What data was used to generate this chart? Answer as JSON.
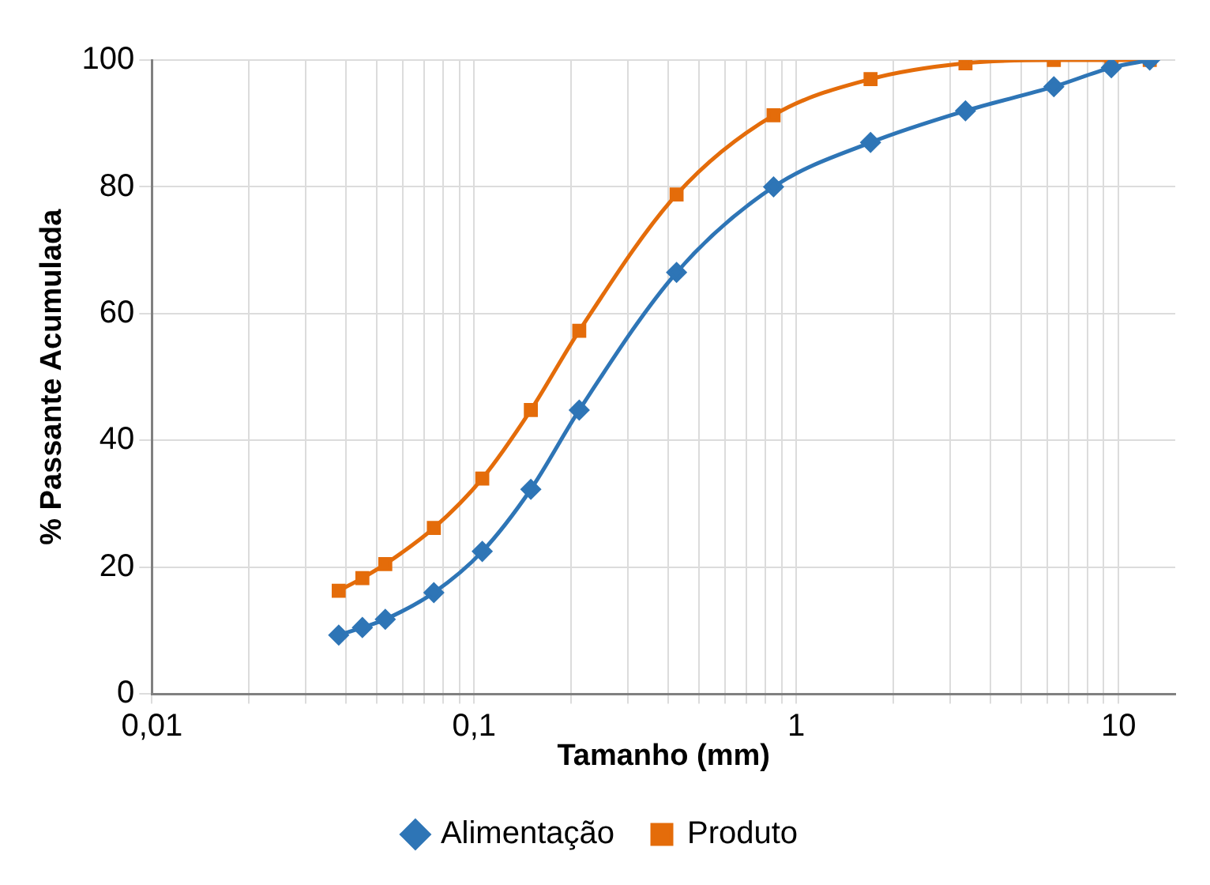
{
  "chart_data": {
    "type": "line",
    "xlabel": "Tamanho (mm)",
    "ylabel": "% Passante Acumulada",
    "log": "x",
    "grid": true,
    "legend": "bottom",
    "line_style": "solid",
    "xlim": [
      0.01,
      15
    ],
    "ylim": [
      0,
      100
    ],
    "yticks": [
      0,
      20,
      40,
      60,
      80,
      100
    ],
    "xticks": [
      {
        "value": 0.01,
        "label": "0,01"
      },
      {
        "value": 0.02,
        "label": null
      },
      {
        "value": 0.03,
        "label": null
      },
      {
        "value": 0.04,
        "label": null
      },
      {
        "value": 0.05,
        "label": null
      },
      {
        "value": 0.06,
        "label": null
      },
      {
        "value": 0.07,
        "label": null
      },
      {
        "value": 0.08,
        "label": null
      },
      {
        "value": 0.09,
        "label": null
      },
      {
        "value": 0.1,
        "label": "0,1"
      },
      {
        "value": 0.2,
        "label": null
      },
      {
        "value": 0.3,
        "label": null
      },
      {
        "value": 0.4,
        "label": null
      },
      {
        "value": 0.5,
        "label": null
      },
      {
        "value": 0.6,
        "label": null
      },
      {
        "value": 0.7,
        "label": null
      },
      {
        "value": 0.8,
        "label": null
      },
      {
        "value": 0.9,
        "label": null
      },
      {
        "value": 1,
        "label": "1"
      },
      {
        "value": 2,
        "label": null
      },
      {
        "value": 3,
        "label": null
      },
      {
        "value": 4,
        "label": null
      },
      {
        "value": 5,
        "label": null
      },
      {
        "value": 6,
        "label": null
      },
      {
        "value": 7,
        "label": null
      },
      {
        "value": 8,
        "label": null
      },
      {
        "value": 9,
        "label": null
      },
      {
        "value": 10,
        "label": "10"
      }
    ],
    "x": [
      0.038,
      0.045,
      0.053,
      0.075,
      0.106,
      0.15,
      0.212,
      0.425,
      0.85,
      1.7,
      3.35,
      6.3,
      9.5,
      12.5
    ],
    "series": [
      {
        "name": "Alimentação",
        "color": "#2e75b6",
        "marker": "diamond",
        "values": [
          9.3,
          10.5,
          11.8,
          16,
          22.5,
          32.3,
          44.8,
          66.5,
          80,
          87,
          92,
          95.8,
          98.8,
          100
        ]
      },
      {
        "name": "Produto",
        "color": "#e46c0a",
        "marker": "square",
        "values": [
          16.3,
          18.3,
          20.5,
          26.2,
          34,
          44.8,
          57.3,
          78.8,
          91.3,
          97,
          99.5,
          100,
          100,
          100
        ]
      }
    ]
  }
}
